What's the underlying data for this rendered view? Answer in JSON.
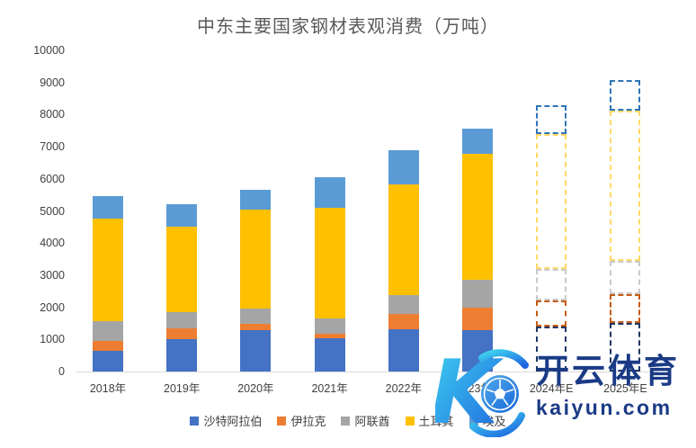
{
  "title": "中东主要国家钢材表观消费（万吨）",
  "chart_data": {
    "type": "bar",
    "stacked": true,
    "title": "中东主要国家钢材表观消费（万吨）",
    "xlabel": "",
    "ylabel": "",
    "ylim": [
      0,
      10000
    ],
    "yticks": [
      0,
      1000,
      2000,
      3000,
      4000,
      5000,
      6000,
      7000,
      8000,
      9000,
      10000
    ],
    "grid": false,
    "legend_position": "bottom",
    "categories": [
      "2018年",
      "2019年",
      "2020年",
      "2021年",
      "2022年",
      "2023年E",
      "2024年E",
      "2025年E"
    ],
    "solid_category_count": 6,
    "forecast_style": "dashed-outline",
    "series": [
      {
        "name": "沙特阿拉伯",
        "color": "#4472C4",
        "forecast_color": "#1F3864",
        "values": [
          650,
          1000,
          1280,
          1050,
          1330,
          1300,
          1400,
          1500
        ]
      },
      {
        "name": "伊拉克",
        "color": "#ED7D31",
        "forecast_color": "#C55A11",
        "values": [
          300,
          350,
          200,
          130,
          450,
          680,
          800,
          900
        ]
      },
      {
        "name": "阿联酋",
        "color": "#A5A5A5",
        "forecast_color": "#C9C9C9",
        "values": [
          630,
          500,
          480,
          480,
          590,
          870,
          1000,
          1050
        ]
      },
      {
        "name": "土耳其",
        "color": "#FFC000",
        "forecast_color": "#FFD966",
        "values": [
          3180,
          2650,
          3070,
          3440,
          3460,
          3940,
          4200,
          4680
        ]
      },
      {
        "name": "埃及",
        "color": "#5B9BD5",
        "forecast_color": "#2E75B6",
        "values": [
          690,
          700,
          620,
          950,
          1070,
          760,
          900,
          950
        ]
      }
    ],
    "totals": [
      5450,
      5200,
      5650,
      6050,
      6900,
      7550,
      8300,
      9080
    ]
  },
  "watermark": {
    "logo_letter": "K",
    "brand": "开云体育",
    "domain": "kaiyun.com",
    "brand_color": "#1a3a85",
    "logo_gradient_start": "#3FD4F0",
    "logo_gradient_end": "#1E63DF"
  }
}
